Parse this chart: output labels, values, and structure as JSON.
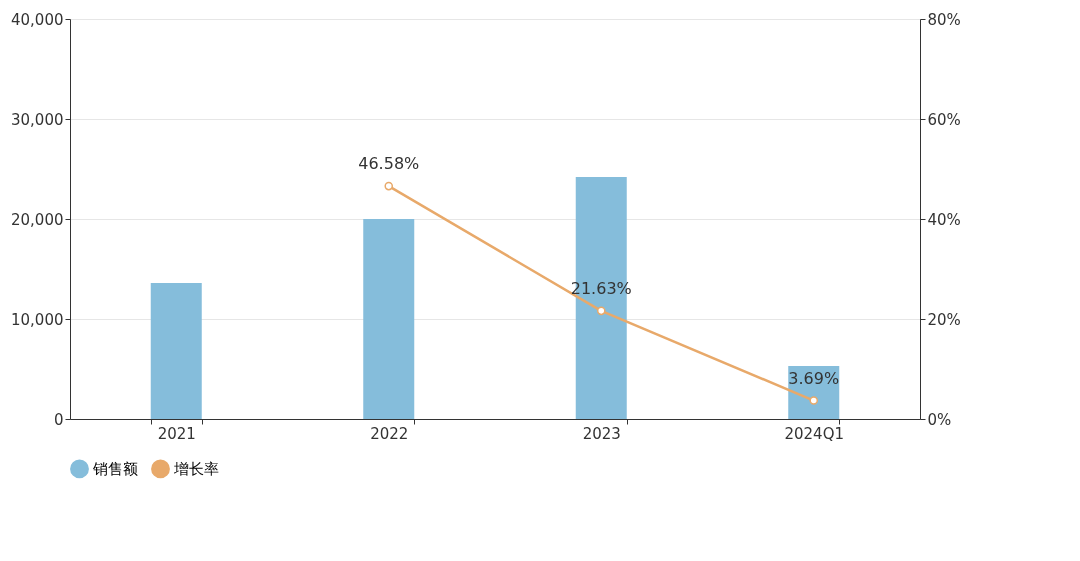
{
  "chart_data": {
    "type": "bar",
    "categories": [
      "2021",
      "2022",
      "2023",
      "2024Q1"
    ],
    "series": [
      {
        "name": "销售额",
        "color": "#85bddb",
        "values": [
          13600,
          20000,
          24200,
          5300
        ]
      },
      {
        "name": "增长率",
        "type": "line",
        "axis": "y2",
        "color": "#e8a96a",
        "marker": "circle",
        "values": [
          null,
          46.58,
          21.63,
          3.69
        ],
        "value_labels": [
          null,
          "46.58%",
          "21.63%",
          "3.69%"
        ]
      }
    ],
    "ylim": [
      0,
      40000
    ],
    "yticks": [
      {
        "value": 0,
        "label": "0"
      },
      {
        "value": 10000,
        "label": "10,000"
      },
      {
        "value": 20000,
        "label": "20,000"
      },
      {
        "value": 30000,
        "label": "30,000"
      },
      {
        "value": 40000,
        "label": "40,000"
      }
    ],
    "y2lim": [
      0,
      80
    ],
    "y2ticks": [
      {
        "value": 0,
        "label": "0%"
      },
      {
        "value": 20,
        "label": "20%"
      },
      {
        "value": 40,
        "label": "40%"
      },
      {
        "value": 60,
        "label": "60%"
      },
      {
        "value": 80,
        "label": "80%"
      }
    ],
    "grid": "y",
    "legend": "bottom"
  }
}
